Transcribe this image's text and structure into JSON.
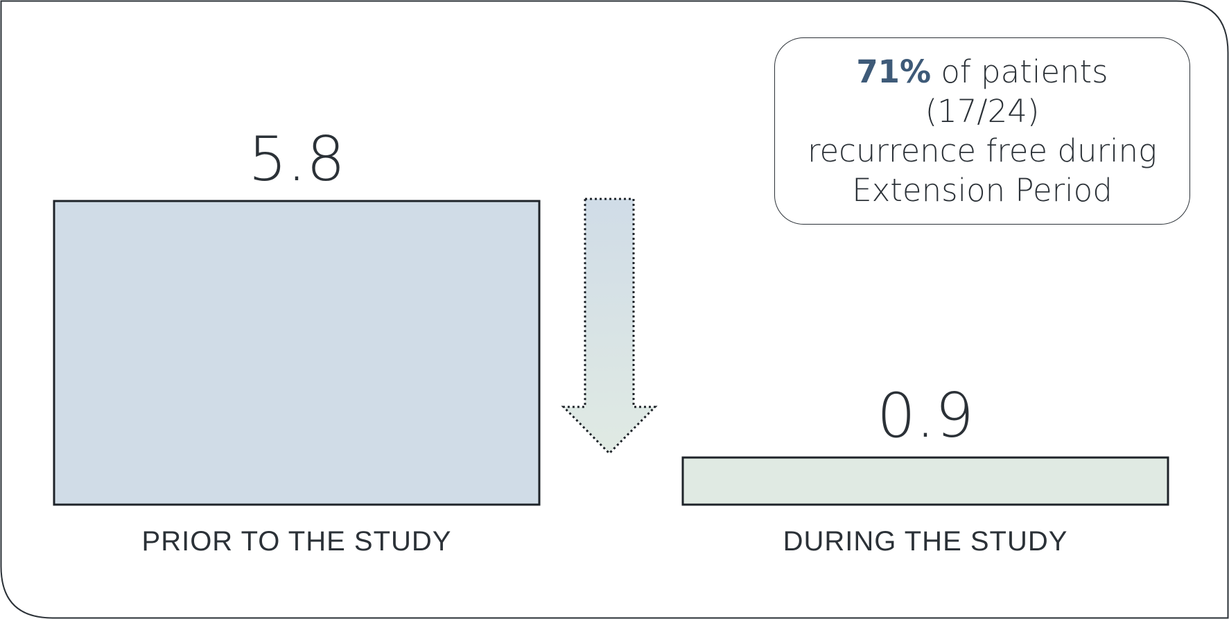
{
  "chart_data": {
    "type": "bar",
    "categories": [
      "PRIOR TO THE STUDY",
      "DURING THE STUDY"
    ],
    "values": [
      5.8,
      0.9
    ],
    "data_labels": [
      "5.8",
      "0.9"
    ],
    "bar_colors": [
      "#d0dce7",
      "#e0eae3"
    ],
    "outline_color": "#1e2329",
    "title": "",
    "xlabel": "",
    "ylabel": "",
    "ylim": [
      0,
      5.8
    ],
    "grid": false,
    "legend": "none",
    "annotation_arrow": {
      "direction": "down",
      "style": "dotted-outline",
      "gradient": [
        "#d0dce7",
        "#e0eae3"
      ]
    }
  },
  "callout": {
    "highlight": "71%",
    "line1_rest": " of patients (17/24)",
    "line2": "recurrence free during",
    "line3": "Extension Period",
    "highlight_color": "#3e5a78"
  },
  "colors": {
    "text": "#2b3137",
    "frame_border": "#2b3137",
    "background": "#ffffff"
  }
}
